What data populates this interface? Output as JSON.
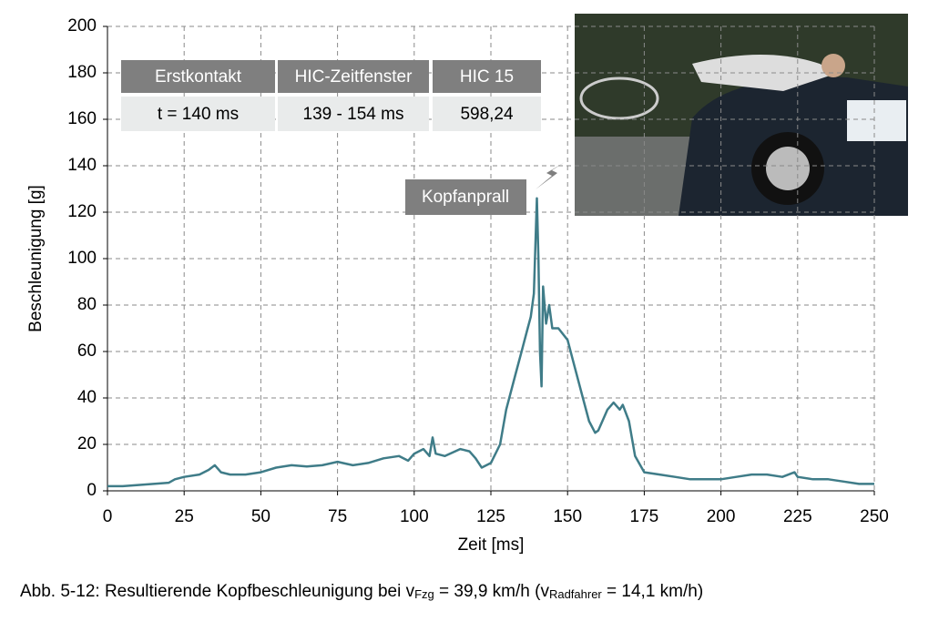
{
  "chart_data": {
    "type": "line",
    "xlabel": "Zeit [ms]",
    "ylabel": "Beschleunigung [g]",
    "x": [
      0,
      5,
      10,
      15,
      20,
      22,
      25,
      30,
      33,
      35,
      37,
      40,
      45,
      50,
      55,
      60,
      65,
      70,
      75,
      80,
      85,
      90,
      95,
      98,
      100,
      103,
      105,
      106,
      107,
      110,
      115,
      118,
      120,
      122,
      125,
      128,
      130,
      133,
      135,
      137,
      138,
      139,
      140,
      140.5,
      141,
      141.5,
      142,
      143,
      144,
      145,
      147,
      150,
      152,
      155,
      157,
      159,
      160,
      163,
      165,
      167,
      168,
      170,
      172,
      175,
      180,
      185,
      190,
      195,
      200,
      205,
      210,
      215,
      220,
      224,
      225,
      230,
      235,
      240,
      245,
      250
    ],
    "series": [
      {
        "color": "#3f7c88",
        "values": [
          2,
          2,
          2.5,
          3,
          3.5,
          5,
          6,
          7,
          9,
          11,
          8,
          7,
          7,
          8,
          10,
          11,
          10.5,
          11,
          12.5,
          11,
          12,
          14,
          15,
          13,
          16,
          18,
          15,
          23,
          16,
          15,
          18,
          17,
          14,
          10,
          12,
          20,
          35,
          50,
          60,
          70,
          75,
          85,
          126,
          100,
          60,
          45,
          88,
          72,
          80,
          70,
          70,
          65,
          55,
          40,
          30,
          25,
          26,
          35,
          38,
          35,
          37,
          30,
          15,
          8,
          7,
          6,
          5,
          5,
          5,
          6,
          7,
          7,
          6,
          8,
          6,
          5,
          5,
          4,
          3,
          3
        ]
      }
    ],
    "xlim": [
      0,
      250
    ],
    "xticks": [
      0,
      25,
      50,
      75,
      100,
      125,
      150,
      175,
      200,
      225,
      250
    ],
    "ylim": [
      0,
      200
    ],
    "yticks": [
      0,
      20,
      40,
      60,
      80,
      100,
      120,
      140,
      160,
      180,
      200
    ],
    "grid": true,
    "annotation": "Kopfanprall"
  },
  "table": {
    "header": [
      "Erstkontakt",
      "HIC-Zeitfenster",
      "HIC 15"
    ],
    "rows": [
      [
        "t = 140 ms",
        "139 - 154 ms",
        "598,24"
      ]
    ]
  },
  "caption": {
    "prefix": "Abb. 5-12:  Resultierende Kopfbeschleunigung bei v",
    "sub1": "Fzg",
    "middle": " = 39,9 km/h (v",
    "sub2": "Radfahrer",
    "suffix": " = 14,1 km/h)"
  }
}
